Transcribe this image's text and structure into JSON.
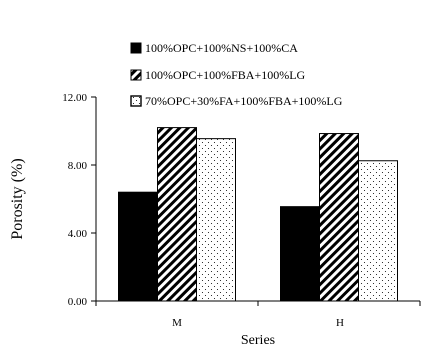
{
  "chart_data": {
    "type": "bar",
    "title": "",
    "xlabel": "Series",
    "ylabel": "Porosity (%)",
    "categories": [
      "M",
      "H"
    ],
    "ylim": [
      0,
      12
    ],
    "yticks": [
      "0.00",
      "4.00",
      "8.00",
      "12.00"
    ],
    "grid": false,
    "legend_position": "top",
    "series": [
      {
        "name": "100%OPC+100%NS+100%CA",
        "values": [
          6.4,
          5.55
        ],
        "fill": "solid-black"
      },
      {
        "name": "100%OPC+100%FBA+100%LG",
        "values": [
          10.2,
          9.85
        ],
        "fill": "diagonal-hatch"
      },
      {
        "name": "70%OPC+30%FA+100%FBA+100%LG",
        "values": [
          9.55,
          8.25
        ],
        "fill": "dotted"
      }
    ]
  }
}
